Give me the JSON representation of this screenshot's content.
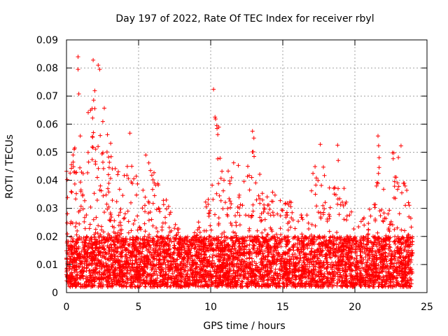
{
  "chart_data": {
    "type": "scatter",
    "title": "Day 197 of 2022, Rate Of TEC Index for receiver rbyl",
    "xlabel": "GPS time / hours",
    "ylabel": "ROTI / TECUs",
    "xlim": [
      0,
      25
    ],
    "ylim": [
      0,
      0.09
    ],
    "xticks": [
      "0",
      "5",
      "10",
      "15",
      "20",
      "25"
    ],
    "yticks": [
      "0",
      "0.01",
      "0.02",
      "0.03",
      "0.04",
      "0.05",
      "0.06",
      "0.07",
      "0.08",
      "0.09"
    ],
    "grid": true,
    "marker": "+",
    "color": "#ff0000",
    "data_range_hours": [
      0,
      24
    ],
    "baseline_band": [
      0.002,
      0.02
    ],
    "envelope": [
      {
        "x": 0.0,
        "y": 0.045
      },
      {
        "x": 0.5,
        "y": 0.05
      },
      {
        "x": 0.8,
        "y": 0.084
      },
      {
        "x": 1.2,
        "y": 0.045
      },
      {
        "x": 1.8,
        "y": 0.083
      },
      {
        "x": 2.2,
        "y": 0.081
      },
      {
        "x": 2.7,
        "y": 0.07
      },
      {
        "x": 3.2,
        "y": 0.05
      },
      {
        "x": 3.8,
        "y": 0.04
      },
      {
        "x": 4.4,
        "y": 0.057
      },
      {
        "x": 5.0,
        "y": 0.037
      },
      {
        "x": 5.5,
        "y": 0.049
      },
      {
        "x": 6.5,
        "y": 0.039
      },
      {
        "x": 7.5,
        "y": 0.026
      },
      {
        "x": 8.5,
        "y": 0.017
      },
      {
        "x": 9.5,
        "y": 0.032
      },
      {
        "x": 10.0,
        "y": 0.04
      },
      {
        "x": 10.2,
        "y": 0.072
      },
      {
        "x": 10.5,
        "y": 0.065
      },
      {
        "x": 11.0,
        "y": 0.048
      },
      {
        "x": 11.7,
        "y": 0.046
      },
      {
        "x": 12.3,
        "y": 0.045
      },
      {
        "x": 12.9,
        "y": 0.058
      },
      {
        "x": 13.5,
        "y": 0.04
      },
      {
        "x": 14.5,
        "y": 0.035
      },
      {
        "x": 15.5,
        "y": 0.033
      },
      {
        "x": 16.5,
        "y": 0.028
      },
      {
        "x": 17.5,
        "y": 0.053
      },
      {
        "x": 18.0,
        "y": 0.04
      },
      {
        "x": 18.8,
        "y": 0.052
      },
      {
        "x": 19.5,
        "y": 0.03
      },
      {
        "x": 20.5,
        "y": 0.026
      },
      {
        "x": 21.2,
        "y": 0.033
      },
      {
        "x": 21.6,
        "y": 0.056
      },
      {
        "x": 22.2,
        "y": 0.036
      },
      {
        "x": 22.6,
        "y": 0.05
      },
      {
        "x": 23.1,
        "y": 0.052
      },
      {
        "x": 23.5,
        "y": 0.04
      },
      {
        "x": 24.0,
        "y": 0.025
      }
    ],
    "notable_points": [
      {
        "x": 0.8,
        "y": 0.084
      },
      {
        "x": 0.8,
        "y": 0.0795
      },
      {
        "x": 1.85,
        "y": 0.0828
      },
      {
        "x": 2.2,
        "y": 0.081
      },
      {
        "x": 2.3,
        "y": 0.0795
      },
      {
        "x": 10.2,
        "y": 0.0724
      },
      {
        "x": 10.3,
        "y": 0.0625
      },
      {
        "x": 12.9,
        "y": 0.0575
      },
      {
        "x": 17.6,
        "y": 0.0528
      },
      {
        "x": 18.8,
        "y": 0.0525
      },
      {
        "x": 21.6,
        "y": 0.0558
      },
      {
        "x": 23.2,
        "y": 0.0523
      },
      {
        "x": 22.6,
        "y": 0.0498
      },
      {
        "x": 4.4,
        "y": 0.0568
      },
      {
        "x": 5.5,
        "y": 0.049
      }
    ]
  }
}
